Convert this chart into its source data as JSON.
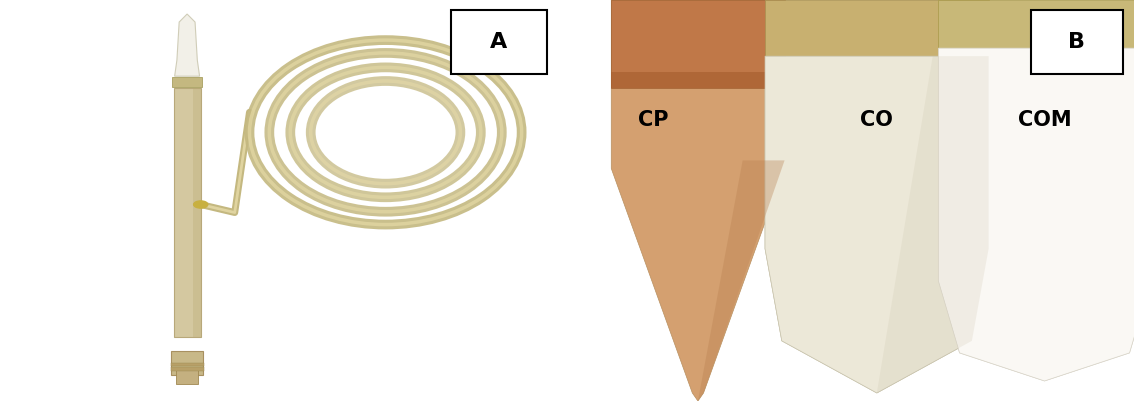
{
  "fig_width": 11.34,
  "fig_height": 4.01,
  "dpi": 100,
  "background_color": "#ffffff",
  "panel_A": {
    "label": "A",
    "label_fontsize": 16,
    "label_fontweight": "bold",
    "bg_color": "#8c8c87",
    "label_box_color": "#ffffff",
    "label_box_edge": "#000000"
  },
  "panel_B": {
    "label": "B",
    "label_fontsize": 16,
    "label_fontweight": "bold",
    "bg_color": "#878780",
    "label_box_color": "#ffffff",
    "label_box_edge": "#000000",
    "capsule_labels": [
      "CP",
      "CO",
      "COM"
    ],
    "capsule_label_fontsize": 15,
    "capsule_label_fontweight": "bold"
  }
}
